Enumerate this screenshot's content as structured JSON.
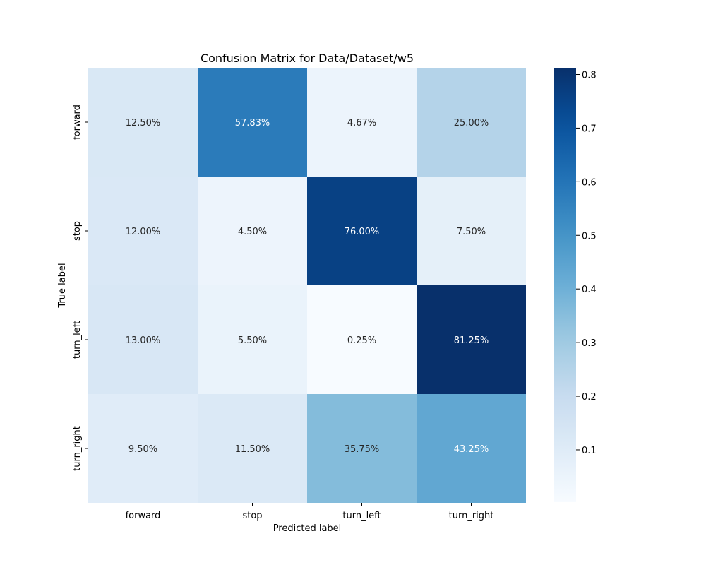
{
  "chart_data": {
    "type": "heatmap",
    "title": "Confusion Matrix for Data/Dataset/w5",
    "xlabel": "Predicted label",
    "ylabel": "True label",
    "x_categories": [
      "forward",
      "stop",
      "turn_left",
      "turn_right"
    ],
    "y_categories": [
      "forward",
      "stop",
      "turn_left",
      "turn_right"
    ],
    "values": [
      [
        0.125,
        0.5783,
        0.0467,
        0.25
      ],
      [
        0.12,
        0.045,
        0.76,
        0.075
      ],
      [
        0.13,
        0.055,
        0.0025,
        0.8125
      ],
      [
        0.095,
        0.115,
        0.3575,
        0.4325
      ]
    ],
    "cell_labels": [
      [
        "12.50%",
        "57.83%",
        "4.67%",
        "25.00%"
      ],
      [
        "12.00%",
        "4.50%",
        "76.00%",
        "7.50%"
      ],
      [
        "13.00%",
        "5.50%",
        "0.25%",
        "81.25%"
      ],
      [
        "9.50%",
        "11.50%",
        "35.75%",
        "43.25%"
      ]
    ],
    "colormap": "Blues",
    "colorbar": {
      "range": [
        0.0025,
        0.8125
      ],
      "ticks": [
        0.1,
        0.2,
        0.3,
        0.4,
        0.5,
        0.6,
        0.7,
        0.8
      ],
      "tick_labels": [
        "0.1",
        "0.2",
        "0.3",
        "0.4",
        "0.5",
        "0.6",
        "0.7",
        "0.8"
      ]
    }
  }
}
